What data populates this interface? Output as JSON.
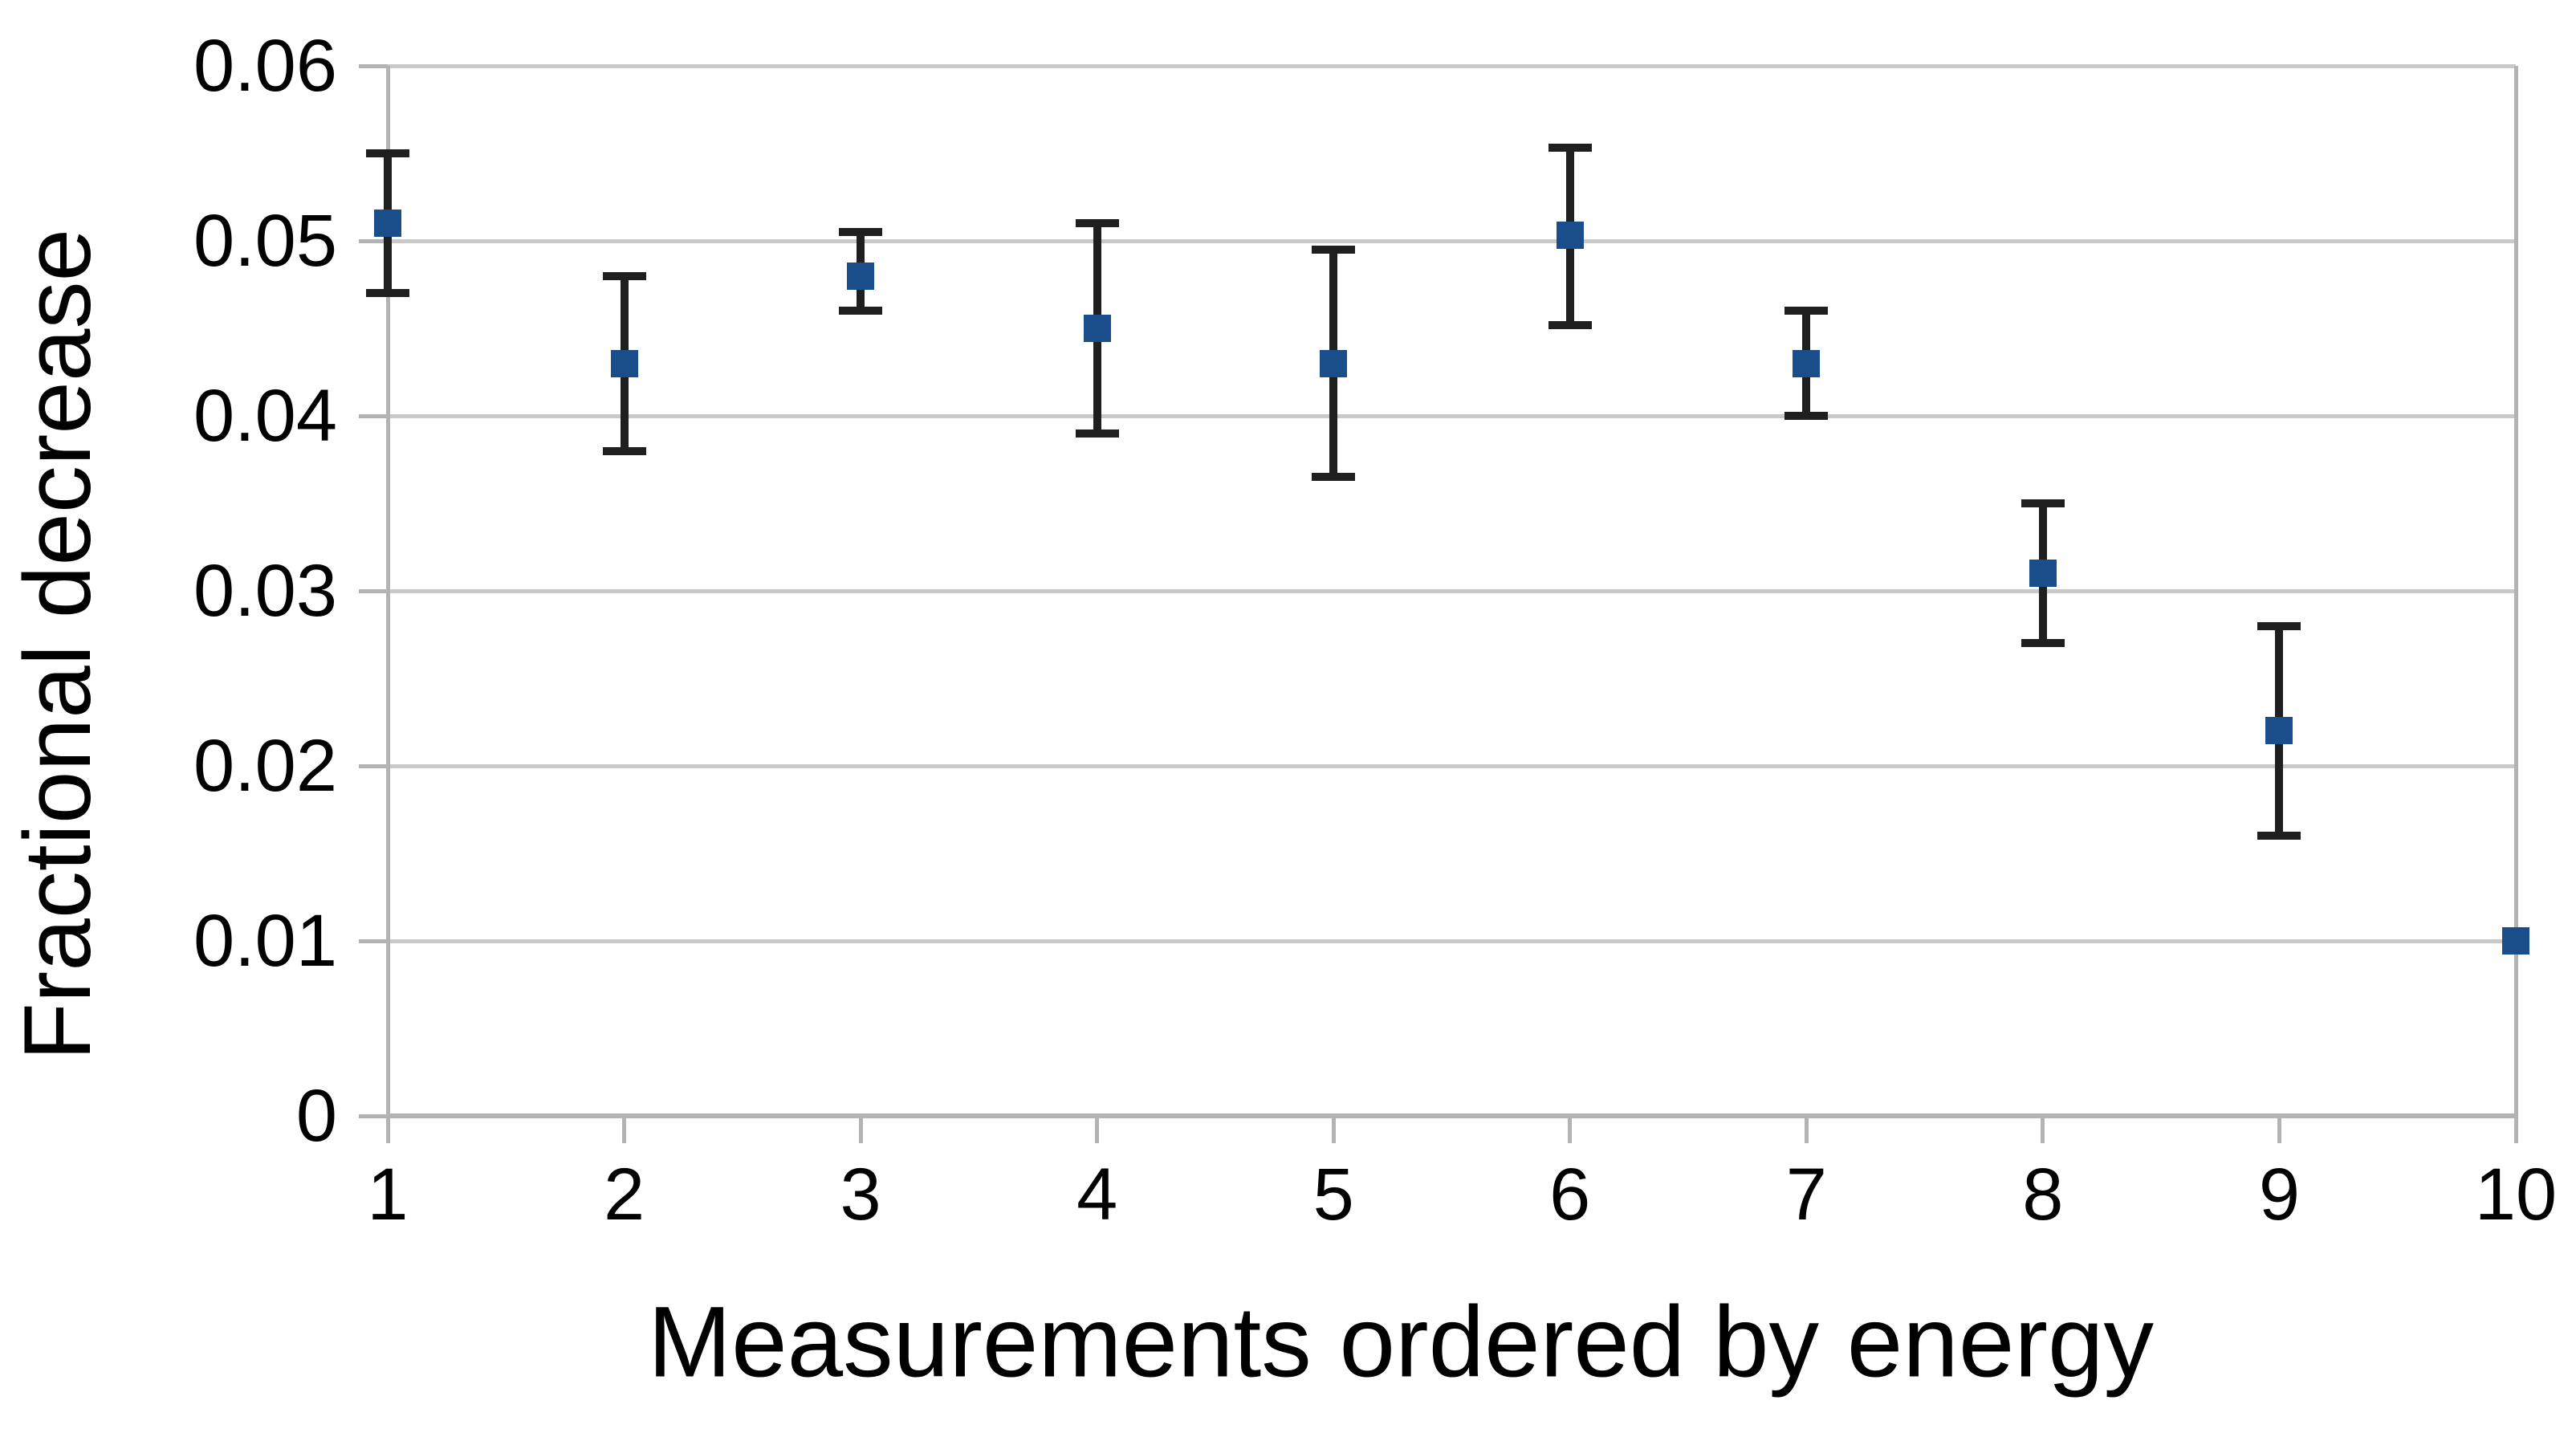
{
  "chart_data": {
    "type": "scatter",
    "title": "",
    "xlabel": "Measurements ordered by energy",
    "ylabel": "Fractional decrease",
    "xlim": [
      1,
      10
    ],
    "ylim": [
      0,
      0.06
    ],
    "x_ticks": [
      1,
      2,
      3,
      4,
      5,
      6,
      7,
      8,
      9,
      10
    ],
    "x_tick_labels": [
      "1",
      "2",
      "3",
      "4",
      "5",
      "6",
      "7",
      "8",
      "9",
      "10"
    ],
    "y_ticks": [
      0,
      0.01,
      0.02,
      0.03,
      0.04,
      0.05,
      0.06
    ],
    "y_tick_labels": [
      "0",
      "0.01",
      "0.02",
      "0.03",
      "0.04",
      "0.05",
      "0.06"
    ],
    "grid": "horizontal-only",
    "legend": "none",
    "marker_shape": "square",
    "error_bars": "vertical-with-caps",
    "series": [
      {
        "name": "Fractional decrease",
        "points": [
          {
            "x": 1,
            "y": 0.051,
            "err_low": 0.047,
            "err_high": 0.055
          },
          {
            "x": 2,
            "y": 0.043,
            "err_low": 0.038,
            "err_high": 0.048
          },
          {
            "x": 3,
            "y": 0.048,
            "err_low": 0.046,
            "err_high": 0.0505
          },
          {
            "x": 4,
            "y": 0.045,
            "err_low": 0.039,
            "err_high": 0.051
          },
          {
            "x": 5,
            "y": 0.043,
            "err_low": 0.0365,
            "err_high": 0.0495
          },
          {
            "x": 6,
            "y": 0.0503,
            "err_low": 0.0452,
            "err_high": 0.0553
          },
          {
            "x": 7,
            "y": 0.043,
            "err_low": 0.04,
            "err_high": 0.046
          },
          {
            "x": 8,
            "y": 0.031,
            "err_low": 0.027,
            "err_high": 0.035
          },
          {
            "x": 9,
            "y": 0.022,
            "err_low": 0.016,
            "err_high": 0.028
          },
          {
            "x": 10,
            "y": 0.01,
            "err_low": null,
            "err_high": null
          }
        ]
      }
    ]
  },
  "colors": {
    "marker": "#1a4e8a",
    "error_bar": "#1f1f1f",
    "gridline": "#c9c9c9",
    "axis_line": "#b3b3b3",
    "text": "#000000",
    "background": "#ffffff"
  }
}
